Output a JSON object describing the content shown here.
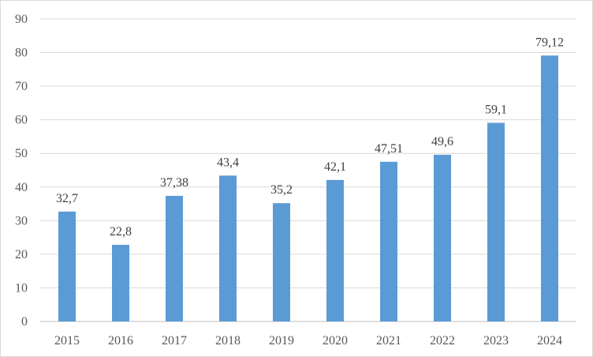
{
  "chart_data": {
    "type": "bar",
    "categories": [
      "2015",
      "2016",
      "2017",
      "2018",
      "2019",
      "2020",
      "2021",
      "2022",
      "2023",
      "2024"
    ],
    "values": [
      32.7,
      22.8,
      37.38,
      43.4,
      35.2,
      42.1,
      47.51,
      49.6,
      59.1,
      79.12
    ],
    "value_labels": [
      "32,7",
      "22,8",
      "37,38",
      "43,4",
      "35,2",
      "42,1",
      "47,51",
      "49,6",
      "59,1",
      "79,12"
    ],
    "title": "",
    "xlabel": "",
    "ylabel": "",
    "ylim": [
      0,
      90
    ],
    "yticks": [
      0,
      10,
      20,
      30,
      40,
      50,
      60,
      70,
      80,
      90
    ],
    "grid": true,
    "legend": "none",
    "colors": {
      "bar": "#5B9BD5",
      "grid": "#d9d9d9",
      "axis": "#bfbfbf"
    }
  }
}
